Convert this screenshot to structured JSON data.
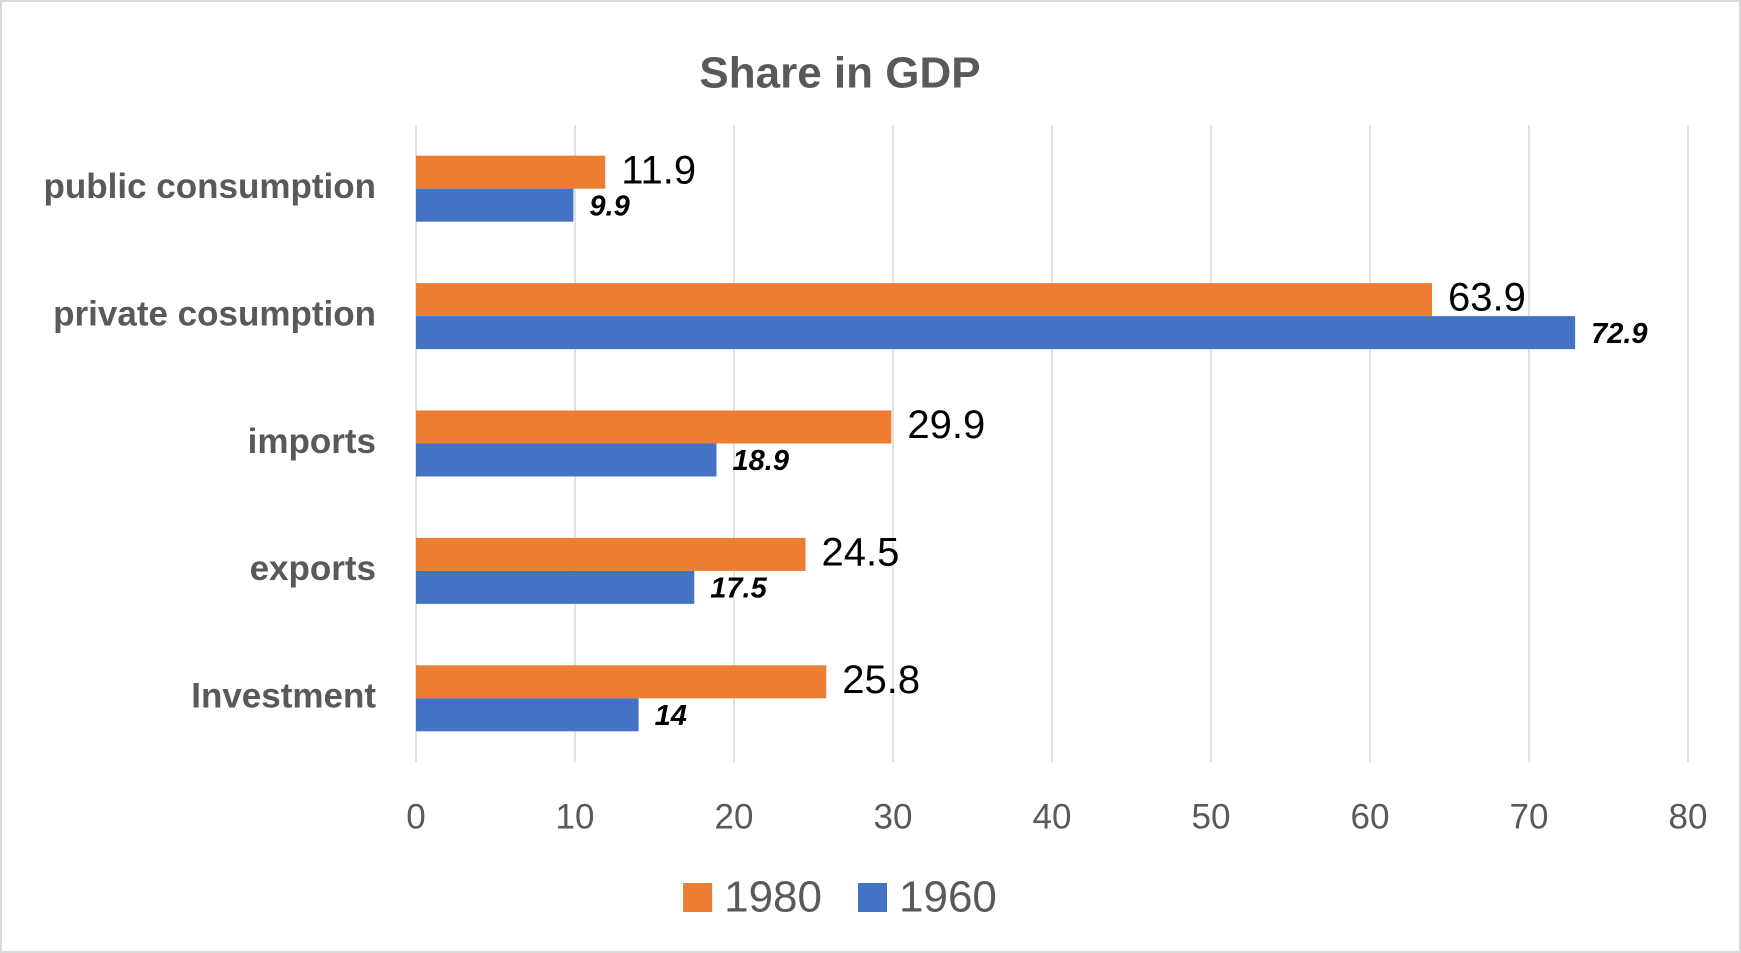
{
  "chart_data": {
    "type": "hbar",
    "title": "Share in GDP",
    "categories": [
      "public consumption",
      "private cosumption",
      "imports",
      "exports",
      "Investment"
    ],
    "series": [
      {
        "name": "1980",
        "color": "#ed7d31",
        "values": [
          11.9,
          63.9,
          29.9,
          24.5,
          25.8
        ]
      },
      {
        "name": "1960",
        "color": "#4472c4",
        "values": [
          9.9,
          72.9,
          18.9,
          17.5,
          14
        ]
      }
    ],
    "xlim": [
      0,
      80
    ],
    "xticks": [
      0,
      10,
      20,
      30,
      40,
      50,
      60,
      70,
      80
    ],
    "grid": true,
    "legend": "bottom"
  }
}
